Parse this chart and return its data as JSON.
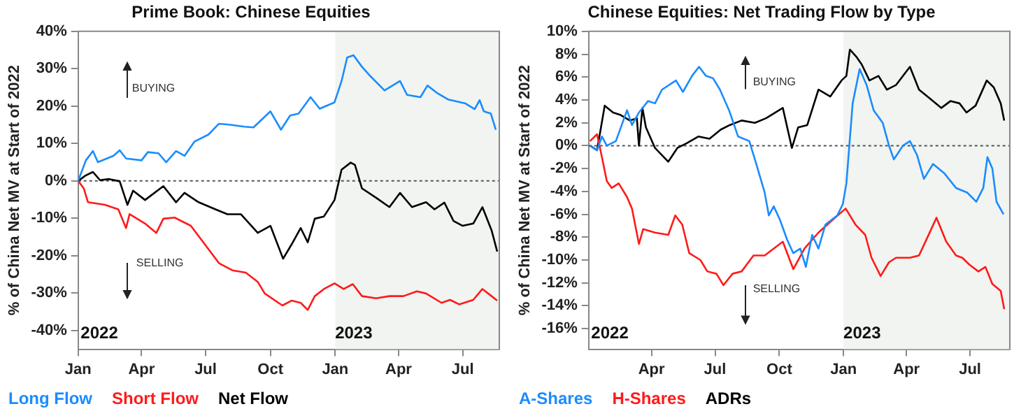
{
  "chart_data": [
    {
      "type": "line",
      "title": "Prime Book: Chinese Equities",
      "ylabel": "% of China Net MV at Start of 2022",
      "xlim": [
        "2022-01-01",
        "2023-08-22"
      ],
      "xticks": [
        {
          "value": "2022-01-01",
          "label": "Jan"
        },
        {
          "value": "2022-04-01",
          "label": "Apr"
        },
        {
          "value": "2022-07-01",
          "label": "Jul"
        },
        {
          "value": "2022-10-01",
          "label": "Oct"
        },
        {
          "value": "2023-01-01",
          "label": "Jan"
        },
        {
          "value": "2023-04-01",
          "label": "Apr"
        },
        {
          "value": "2023-07-01",
          "label": "Jul"
        }
      ],
      "ylim": [
        -45,
        40
      ],
      "yticks": [
        {
          "value": -40,
          "label": "-40%"
        },
        {
          "value": -30,
          "label": "-30%"
        },
        {
          "value": -20,
          "label": "-20%"
        },
        {
          "value": -10,
          "label": "-10%"
        },
        {
          "value": 0,
          "label": "0%"
        },
        {
          "value": 10,
          "label": "10%"
        },
        {
          "value": 20,
          "label": "20%"
        },
        {
          "value": 30,
          "label": "30%"
        },
        {
          "value": 40,
          "label": "40%"
        }
      ],
      "grid": false,
      "legend": "bottom",
      "marker": "none",
      "line_style": "solid",
      "annotations": [
        "BUYING",
        "SELLING",
        "2022",
        "2023"
      ],
      "bands": [
        {
          "axis": "x",
          "from": "2023-01-01",
          "to": "2023-08-22",
          "color": "#f1f4f0"
        }
      ],
      "ref_lines": [
        {
          "axis": "y",
          "value": 0,
          "color": "#555555",
          "line_style": "dotted"
        }
      ],
      "series": [
        {
          "name": "Long Flow",
          "color": "#1a8cff",
          "x": [
            "2022-01-01",
            "2022-01-12",
            "2022-01-22",
            "2022-01-29",
            "2022-02-20",
            "2022-03-01",
            "2022-03-10",
            "2022-04-01",
            "2022-04-10",
            "2022-04-25",
            "2022-05-06",
            "2022-05-20",
            "2022-06-01",
            "2022-06-15",
            "2022-07-05",
            "2022-07-20",
            "2022-08-05",
            "2022-08-25",
            "2022-09-07",
            "2022-10-01",
            "2022-10-16",
            "2022-10-29",
            "2022-11-10",
            "2022-11-27",
            "2022-12-10",
            "2022-12-31",
            "2023-01-10",
            "2023-01-18",
            "2023-01-27",
            "2023-02-08",
            "2023-02-20",
            "2023-03-12",
            "2023-04-03",
            "2023-04-13",
            "2023-05-02",
            "2023-05-12",
            "2023-05-25",
            "2023-06-10",
            "2023-07-05",
            "2023-07-18",
            "2023-07-25",
            "2023-07-31",
            "2023-08-10",
            "2023-08-17"
          ],
          "values": [
            0,
            5.5,
            8,
            5,
            6.7,
            8.2,
            6,
            5.5,
            7.7,
            7.4,
            5,
            8,
            6.7,
            10.5,
            12.4,
            15.3,
            15,
            14.5,
            14.3,
            18.6,
            13.7,
            17.5,
            18,
            22.4,
            19.3,
            21,
            26.7,
            33,
            33.6,
            30.5,
            28,
            24.2,
            26.7,
            23,
            22.4,
            25.5,
            23.6,
            21.8,
            20.7,
            19.2,
            21.6,
            18.6,
            18,
            13.7
          ]
        },
        {
          "name": "Short Flow",
          "color": "#ff1a1a",
          "x": [
            "2022-01-01",
            "2022-01-09",
            "2022-01-15",
            "2022-02-08",
            "2022-02-27",
            "2022-03-10",
            "2022-03-15",
            "2022-04-06",
            "2022-04-22",
            "2022-05-02",
            "2022-05-18",
            "2022-06-10",
            "2022-06-30",
            "2022-07-20",
            "2022-08-08",
            "2022-08-27",
            "2022-09-13",
            "2022-09-23",
            "2022-10-18",
            "2022-10-31",
            "2022-11-13",
            "2022-11-23",
            "2022-12-03",
            "2022-12-16",
            "2022-12-31",
            "2023-01-13",
            "2023-01-26",
            "2023-02-08",
            "2023-02-28",
            "2023-03-19",
            "2023-04-08",
            "2023-04-27",
            "2023-05-10",
            "2023-06-01",
            "2023-06-13",
            "2023-06-26",
            "2023-07-16",
            "2023-07-29",
            "2023-08-11",
            "2023-08-19"
          ],
          "values": [
            0,
            -2,
            -5.7,
            -6.4,
            -7.6,
            -12.6,
            -8.9,
            -11.4,
            -13.9,
            -10.1,
            -9.8,
            -12,
            -17,
            -22,
            -23.9,
            -24.5,
            -27,
            -30.1,
            -33.3,
            -32,
            -32.6,
            -34.5,
            -30.8,
            -28.9,
            -27.4,
            -28.9,
            -27.6,
            -30.8,
            -31.4,
            -30.8,
            -30.8,
            -29.5,
            -30.1,
            -32.6,
            -31.8,
            -33,
            -31.8,
            -28.9,
            -30.8,
            -32
          ]
        },
        {
          "name": "Net Flow",
          "color": "#000000",
          "x": [
            "2022-01-01",
            "2022-01-12",
            "2022-01-22",
            "2022-02-01",
            "2022-02-14",
            "2022-03-01",
            "2022-03-12",
            "2022-03-20",
            "2022-04-06",
            "2022-05-02",
            "2022-05-20",
            "2022-06-01",
            "2022-06-21",
            "2022-07-15",
            "2022-08-01",
            "2022-08-20",
            "2022-09-13",
            "2022-10-01",
            "2022-10-19",
            "2022-10-31",
            "2022-11-13",
            "2022-11-23",
            "2022-12-03",
            "2022-12-16",
            "2022-12-31",
            "2023-01-10",
            "2023-01-23",
            "2023-01-29",
            "2023-02-08",
            "2023-02-28",
            "2023-03-19",
            "2023-04-03",
            "2023-04-20",
            "2023-05-10",
            "2023-05-22",
            "2023-06-05",
            "2023-06-18",
            "2023-07-01",
            "2023-07-16",
            "2023-07-29",
            "2023-08-11",
            "2023-08-19"
          ],
          "values": [
            0,
            1.5,
            2.4,
            0.2,
            0.5,
            -0.1,
            -6.4,
            -2.6,
            -5.1,
            -1.4,
            -5.7,
            -3.2,
            -5.7,
            -7.6,
            -8.9,
            -8.9,
            -13.9,
            -12,
            -20.8,
            -17,
            -12.6,
            -16.4,
            -10.1,
            -9.5,
            -5.1,
            3,
            4.9,
            4.3,
            -2,
            -4.5,
            -7,
            -3.2,
            -7,
            -5.7,
            -7.6,
            -5.8,
            -10.7,
            -12,
            -11.4,
            -7,
            -13.2,
            -18.9
          ]
        }
      ]
    },
    {
      "type": "line",
      "title": "Chinese Equities: Net Trading Flow by Type",
      "ylabel": "% of China Net MV at Start of 2022",
      "xlim": [
        "2022-01-01",
        "2023-08-27"
      ],
      "xticks": [
        {
          "value": "2022-04-01",
          "label": "Apr"
        },
        {
          "value": "2022-07-01",
          "label": "Jul"
        },
        {
          "value": "2022-10-01",
          "label": "Oct"
        },
        {
          "value": "2023-01-01",
          "label": "Jan"
        },
        {
          "value": "2023-04-01",
          "label": "Apr"
        },
        {
          "value": "2023-07-01",
          "label": "Jul"
        }
      ],
      "ylim": [
        -17.8,
        10
      ],
      "yticks": [
        {
          "value": -16,
          "label": "-16%"
        },
        {
          "value": -14,
          "label": "-14%"
        },
        {
          "value": -12,
          "label": "-12%"
        },
        {
          "value": -10,
          "label": "-10%"
        },
        {
          "value": -8,
          "label": "-8%"
        },
        {
          "value": -6,
          "label": "-6%"
        },
        {
          "value": -4,
          "label": "-4%"
        },
        {
          "value": -2,
          "label": "-2%"
        },
        {
          "value": 0,
          "label": "0%"
        },
        {
          "value": 2,
          "label": "2%"
        },
        {
          "value": 4,
          "label": "4%"
        },
        {
          "value": 6,
          "label": "6%"
        },
        {
          "value": 8,
          "label": "8%"
        },
        {
          "value": 10,
          "label": "10%"
        }
      ],
      "grid": false,
      "legend": "bottom",
      "marker": "none",
      "line_style": "solid",
      "annotations": [
        "BUYING",
        "SELLING",
        "2022",
        "2023"
      ],
      "bands": [
        {
          "axis": "x",
          "from": "2023-01-01",
          "to": "2023-08-27",
          "color": "#f1f4f0"
        }
      ],
      "ref_lines": [
        {
          "axis": "y",
          "value": 0,
          "color": "#555555",
          "line_style": "dotted"
        }
      ],
      "series": [
        {
          "name": "A-Shares",
          "color": "#1a8cff",
          "x": [
            "2022-01-03",
            "2022-01-13",
            "2022-01-20",
            "2022-01-27",
            "2022-02-09",
            "2022-02-25",
            "2022-03-04",
            "2022-03-14",
            "2022-03-27",
            "2022-04-06",
            "2022-04-16",
            "2022-05-06",
            "2022-05-16",
            "2022-05-29",
            "2022-06-08",
            "2022-06-18",
            "2022-06-28",
            "2022-07-08",
            "2022-07-21",
            "2022-08-03",
            "2022-08-19",
            "2022-08-29",
            "2022-09-10",
            "2022-09-16",
            "2022-09-23",
            "2022-10-02",
            "2022-10-12",
            "2022-10-21",
            "2022-10-31",
            "2022-11-08",
            "2022-11-17",
            "2022-11-26",
            "2022-12-06",
            "2022-12-23",
            "2022-12-31",
            "2023-01-05",
            "2023-01-14",
            "2023-01-24",
            "2023-02-03",
            "2023-02-13",
            "2023-02-26",
            "2023-03-07",
            "2023-03-14",
            "2023-03-27",
            "2023-04-06",
            "2023-04-16",
            "2023-04-26",
            "2023-05-09",
            "2023-05-25",
            "2023-06-11",
            "2023-06-27",
            "2023-07-10",
            "2023-07-20",
            "2023-07-26",
            "2023-08-02",
            "2023-08-08",
            "2023-08-18"
          ],
          "values": [
            0,
            -0.4,
            0.8,
            0,
            0.4,
            3.1,
            1.8,
            2.9,
            3.9,
            3.7,
            4.9,
            5.7,
            4.7,
            6.1,
            6.9,
            6.1,
            5.9,
            4.9,
            3.1,
            0.8,
            0.4,
            -1.6,
            -4.1,
            -6.1,
            -5.3,
            -6.5,
            -8.2,
            -9.4,
            -9,
            -10.6,
            -7.8,
            -9,
            -6.9,
            -6.1,
            -5.1,
            -3.3,
            3.7,
            6.7,
            5.3,
            3.1,
            2,
            0,
            -1.2,
            0,
            0.4,
            -0.8,
            -2.9,
            -1.6,
            -2.4,
            -3.7,
            -4.1,
            -4.9,
            -3.7,
            -1,
            -2,
            -4.9,
            -6
          ]
        },
        {
          "name": "H-Shares",
          "color": "#ff1a1a",
          "x": [
            "2022-01-03",
            "2022-01-13",
            "2022-01-20",
            "2022-01-27",
            "2022-02-03",
            "2022-02-13",
            "2022-02-25",
            "2022-03-04",
            "2022-03-14",
            "2022-03-20",
            "2022-04-06",
            "2022-04-25",
            "2022-05-05",
            "2022-05-15",
            "2022-05-25",
            "2022-06-10",
            "2022-06-20",
            "2022-07-03",
            "2022-07-13",
            "2022-07-26",
            "2022-08-08",
            "2022-08-25",
            "2022-09-10",
            "2022-10-06",
            "2022-10-21",
            "2022-11-06",
            "2022-11-26",
            "2022-12-16",
            "2023-01-04",
            "2023-01-18",
            "2023-02-01",
            "2023-02-10",
            "2023-02-23",
            "2023-03-07",
            "2023-03-17",
            "2023-04-06",
            "2023-04-19",
            "2023-05-02",
            "2023-05-14",
            "2023-05-28",
            "2023-06-11",
            "2023-06-20",
            "2023-06-30",
            "2023-07-13",
            "2023-07-23",
            "2023-08-02",
            "2023-08-14",
            "2023-08-19"
          ],
          "values": [
            0.4,
            1,
            -1,
            -3.1,
            -3.7,
            -3.3,
            -4.5,
            -5.5,
            -8.6,
            -7.3,
            -7.6,
            -7.8,
            -6.1,
            -6.9,
            -9.4,
            -10,
            -11,
            -11.2,
            -12.2,
            -11.2,
            -11,
            -9.6,
            -9.6,
            -8.4,
            -10.8,
            -9,
            -7.6,
            -6.5,
            -5.5,
            -6.9,
            -7.8,
            -9.8,
            -11.4,
            -10.2,
            -9.8,
            -9.8,
            -9.6,
            -7.9,
            -6.3,
            -8.4,
            -9.6,
            -9.8,
            -10.4,
            -11,
            -10.6,
            -12.1,
            -12.7,
            -14.3
          ]
        },
        {
          "name": "ADRs",
          "color": "#000000",
          "x": [
            "2022-01-03",
            "2022-01-13",
            "2022-01-24",
            "2022-02-05",
            "2022-02-15",
            "2022-03-01",
            "2022-03-11",
            "2022-03-14",
            "2022-03-19",
            "2022-03-24",
            "2022-04-06",
            "2022-04-25",
            "2022-05-08",
            "2022-05-21",
            "2022-06-07",
            "2022-06-23",
            "2022-07-09",
            "2022-07-22",
            "2022-08-08",
            "2022-08-27",
            "2022-09-12",
            "2022-10-06",
            "2022-10-19",
            "2022-10-28",
            "2022-11-10",
            "2022-11-26",
            "2022-12-13",
            "2022-12-29",
            "2023-01-05",
            "2023-01-10",
            "2023-01-19",
            "2023-01-27",
            "2023-02-07",
            "2023-02-20",
            "2023-03-04",
            "2023-03-17",
            "2023-04-06",
            "2023-04-19",
            "2023-05-05",
            "2023-05-21",
            "2023-06-03",
            "2023-06-16",
            "2023-06-26",
            "2023-07-09",
            "2023-07-25",
            "2023-08-04",
            "2023-08-14",
            "2023-08-19"
          ],
          "values": [
            0,
            -0.4,
            3.5,
            2.9,
            2.7,
            2.2,
            2.4,
            0,
            3.3,
            1.6,
            -0.2,
            -1.4,
            -0.2,
            0.2,
            0.8,
            0.6,
            1.4,
            1.8,
            2.2,
            2,
            2.4,
            3.3,
            -0.2,
            1.6,
            1.8,
            4.9,
            4.3,
            5.7,
            6.1,
            8.4,
            7.8,
            7.1,
            5.7,
            6.1,
            4.9,
            5.3,
            6.9,
            4.9,
            4.1,
            3.3,
            3.9,
            3.7,
            2.9,
            3.5,
            5.7,
            5.1,
            3.7,
            2.2
          ]
        }
      ]
    }
  ]
}
